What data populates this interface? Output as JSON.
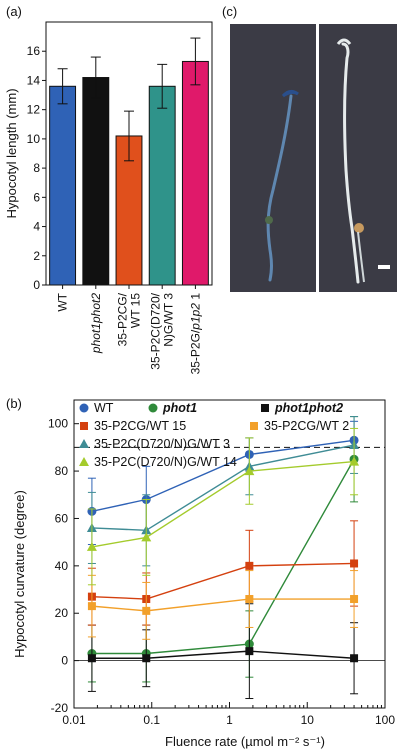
{
  "panels": {
    "a": {
      "label": "(a)"
    },
    "b": {
      "label": "(b)"
    },
    "c": {
      "label": "(c)"
    }
  },
  "colors": {
    "blue": "#2f62b6",
    "black": "#111111",
    "orange": "#e0501c",
    "teal": "#2f938a",
    "magenta": "#e0196a",
    "green": "#2f8a3a",
    "red": "#d4400f",
    "lightorange": "#f2a02a",
    "cyan": "#3f8c95",
    "lime": "#a4cb2c"
  },
  "photo": {
    "background": "#3b3b45",
    "left_stain": "#5f87b0",
    "right_stem": "#e6ebec",
    "seed": "#c79a5f",
    "scale_bar": "#ffffff"
  },
  "chart_data": [
    {
      "type": "bar",
      "panel": "a",
      "ylabel": "Hypocotyl length (mm)",
      "ylim": [
        0,
        18
      ],
      "yticks": [
        0,
        2,
        4,
        6,
        8,
        10,
        12,
        14,
        16
      ],
      "categories": [
        {
          "text": "WT",
          "italic": ""
        },
        {
          "text": "",
          "italic": "phot1phot2"
        },
        {
          "text": "35-P2CG/ WT 15",
          "italic": ""
        },
        {
          "text": "35-P2C(D720/ N)G/WT 3",
          "italic": ""
        },
        {
          "text": "35-P2G/",
          "italic": "p1p2",
          "suffix": " 1"
        }
      ],
      "values": [
        13.6,
        14.2,
        10.2,
        13.6,
        15.3
      ],
      "errors": [
        1.2,
        1.4,
        1.7,
        1.5,
        1.6
      ],
      "bar_colors": [
        "#2f62b6",
        "#111111",
        "#e0501c",
        "#2f938a",
        "#e0196a"
      ]
    },
    {
      "type": "line",
      "panel": "b",
      "xlabel": "Fluence rate (µmol m⁻² s⁻¹)",
      "ylabel": "Hypocotyl curvature (degree)",
      "xscale": "log",
      "xlim": [
        0.01,
        100
      ],
      "xticks": [
        0.01,
        0.1,
        1,
        10,
        100
      ],
      "xtick_labels": [
        "0.01",
        "0.1",
        "1",
        "10",
        "100"
      ],
      "ylim": [
        -20,
        110
      ],
      "yticks": [
        -20,
        0,
        20,
        40,
        60,
        80,
        100
      ],
      "reference_line": 90,
      "x": [
        0.017,
        0.085,
        1.8,
        40
      ],
      "legend_placement": "top",
      "series": [
        {
          "name": "WT",
          "italic": false,
          "marker": "circle",
          "color": "#2f62b6",
          "values": [
            63,
            68,
            87,
            93
          ],
          "errors": [
            14,
            14,
            7,
            8
          ]
        },
        {
          "name": "phot1",
          "italic": true,
          "marker": "circle",
          "color": "#2f8a3a",
          "values": [
            3,
            3,
            7,
            85
          ],
          "errors": [
            12,
            12,
            14,
            18
          ]
        },
        {
          "name": "phot1phot2",
          "italic": true,
          "marker": "square",
          "color": "#111111",
          "values": [
            1,
            1,
            4,
            1
          ],
          "errors": [
            14,
            12,
            20,
            15
          ]
        },
        {
          "name": "35-P2CG/WT 15",
          "italic": false,
          "marker": "square",
          "color": "#d4400f",
          "values": [
            27,
            26,
            40,
            41
          ],
          "errors": [
            12,
            11,
            15,
            18
          ]
        },
        {
          "name": "35-P2CG/WT 2",
          "italic": false,
          "marker": "square",
          "color": "#f2a02a",
          "values": [
            23,
            21,
            26,
            26
          ],
          "errors": [
            13,
            12,
            12,
            12
          ]
        },
        {
          "name": "35-P2C(D720/N)G/WT 3",
          "italic": false,
          "marker": "triangle",
          "color": "#3f8c95",
          "values": [
            56,
            55,
            82,
            91
          ],
          "errors": [
            15,
            15,
            12,
            12
          ]
        },
        {
          "name": "35-P2C(D720/N)G/WT 14",
          "italic": false,
          "marker": "triangle",
          "color": "#a4cb2c",
          "values": [
            48,
            52,
            80,
            84
          ],
          "errors": [
            16,
            16,
            14,
            14
          ]
        }
      ]
    }
  ]
}
